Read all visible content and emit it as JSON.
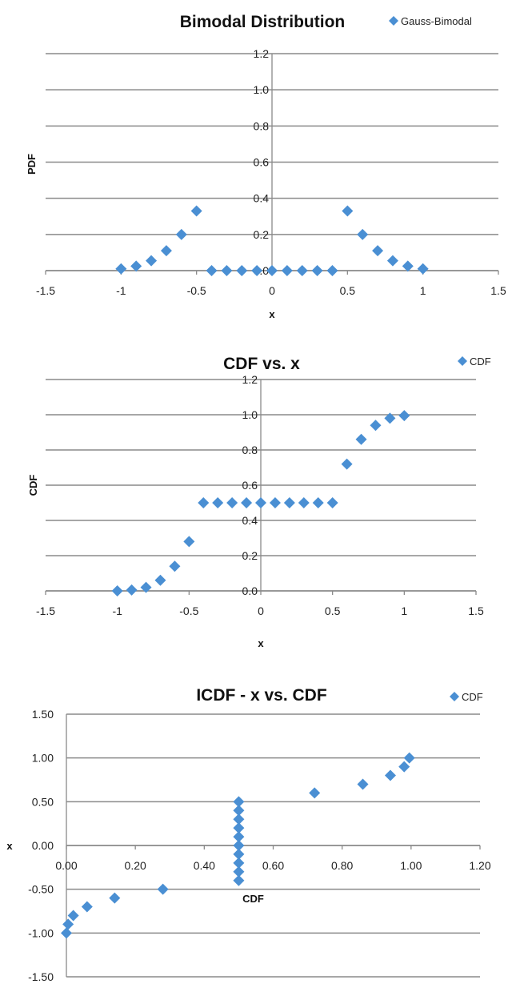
{
  "marker_color": "#4A8FD3",
  "chart_data": [
    {
      "type": "scatter",
      "title": "Bimodal Distribution",
      "xlabel": "x",
      "ylabel": "PDF",
      "xlim": [
        -1.5,
        1.5
      ],
      "ylim": [
        0,
        1.2
      ],
      "xticks": [
        "-1.5",
        "-1",
        "-0.5",
        "0",
        "0.5",
        "1",
        "1.5"
      ],
      "yticks": [
        "0.0",
        "0.2",
        "0.4",
        "0.6",
        "0.8",
        "1.0",
        "1.2"
      ],
      "grid": "horizontal",
      "legend_position": "top-right",
      "series": [
        {
          "name": "Gauss-Bimodal",
          "x": [
            -1,
            -0.9,
            -0.8,
            -0.7,
            -0.6,
            -0.5,
            -0.4,
            -0.3,
            -0.2,
            -0.1,
            0,
            0.1,
            0.2,
            0.3,
            0.4,
            0.5,
            0.6,
            0.7,
            0.8,
            0.9,
            1
          ],
          "y": [
            0.01,
            0.025,
            0.055,
            0.11,
            0.2,
            0.33,
            0,
            0,
            0,
            0,
            0,
            0,
            0,
            0,
            0,
            0.33,
            0.2,
            0.11,
            0.055,
            0.025,
            0.01
          ]
        }
      ]
    },
    {
      "type": "scatter",
      "title": "CDF vs. x",
      "xlabel": "x",
      "ylabel": "CDF",
      "xlim": [
        -1.5,
        1.5
      ],
      "ylim": [
        0,
        1.2
      ],
      "xticks": [
        "-1.5",
        "-1",
        "-0.5",
        "0",
        "0.5",
        "1",
        "1.5"
      ],
      "yticks": [
        "0.0",
        "0.2",
        "0.4",
        "0.6",
        "0.8",
        "1.0",
        "1.2"
      ],
      "grid": "horizontal",
      "legend_position": "top-right",
      "series": [
        {
          "name": "CDF",
          "x": [
            -1,
            -0.9,
            -0.8,
            -0.7,
            -0.6,
            -0.5,
            -0.4,
            -0.3,
            -0.2,
            -0.1,
            0,
            0.1,
            0.2,
            0.3,
            0.4,
            0.5,
            0.6,
            0.7,
            0.8,
            0.9,
            1
          ],
          "y": [
            0,
            0.005,
            0.02,
            0.06,
            0.14,
            0.28,
            0.5,
            0.5,
            0.5,
            0.5,
            0.5,
            0.5,
            0.5,
            0.5,
            0.5,
            0.5,
            0.72,
            0.86,
            0.94,
            0.98,
            0.995
          ]
        }
      ]
    },
    {
      "type": "scatter",
      "title": "ICDF - x vs. CDF",
      "xlabel": "CDF",
      "ylabel": "x",
      "xlim": [
        0,
        1.2
      ],
      "ylim": [
        -1.5,
        1.5
      ],
      "xticks": [
        "0.00",
        "0.20",
        "0.40",
        "0.60",
        "0.80",
        "1.00",
        "1.20"
      ],
      "yticks": [
        "-1.50",
        "-1.00",
        "-0.50",
        "0.00",
        "0.50",
        "1.00",
        "1.50"
      ],
      "grid": "horizontal",
      "legend_position": "top-right",
      "series": [
        {
          "name": "CDF",
          "x": [
            0,
            0.005,
            0.02,
            0.06,
            0.14,
            0.28,
            0.5,
            0.5,
            0.5,
            0.5,
            0.5,
            0.5,
            0.5,
            0.5,
            0.5,
            0.5,
            0.72,
            0.86,
            0.94,
            0.98,
            0.995
          ],
          "y": [
            -1,
            -0.9,
            -0.8,
            -0.7,
            -0.6,
            -0.5,
            -0.4,
            -0.3,
            -0.2,
            -0.1,
            0,
            0.1,
            0.2,
            0.3,
            0.4,
            0.5,
            0.6,
            0.7,
            0.8,
            0.9,
            1
          ]
        }
      ]
    }
  ]
}
